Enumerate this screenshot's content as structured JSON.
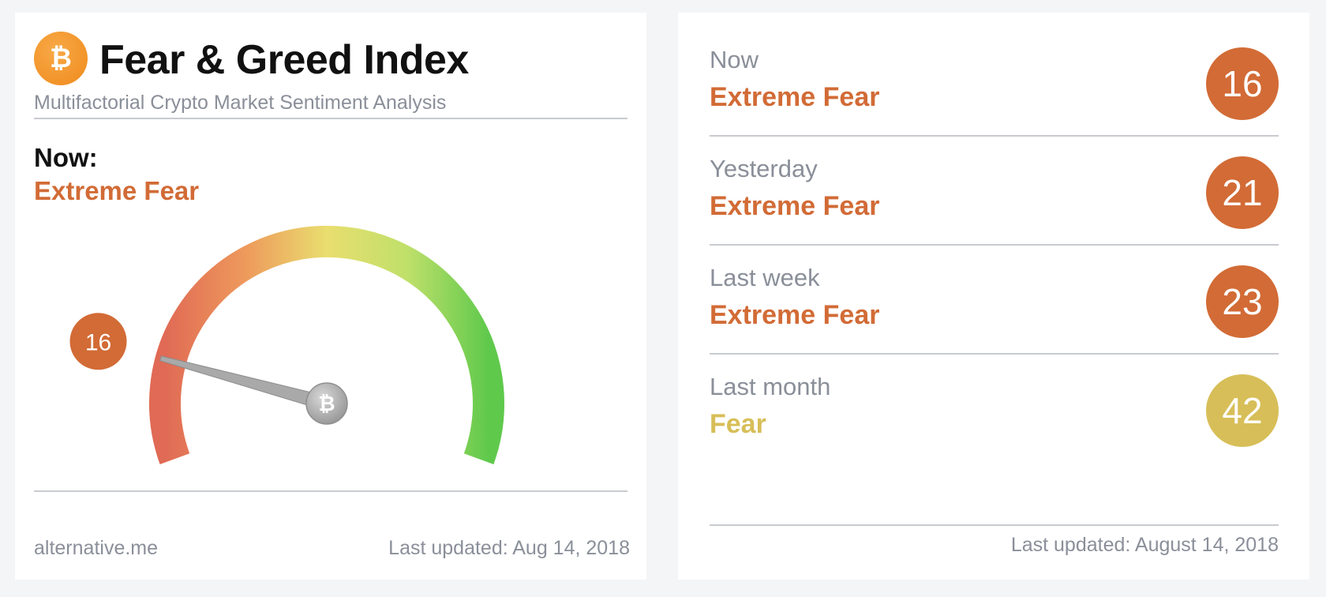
{
  "brand": {
    "icon": "bitcoin-icon",
    "icon_glyph": "₿"
  },
  "header": {
    "title": "Fear & Greed Index",
    "subtitle": "Multifactorial Crypto Market Sentiment Analysis"
  },
  "now": {
    "label": "Now:",
    "classification": "Extreme Fear",
    "value": 16,
    "value_label": "16",
    "color": "#d26b36"
  },
  "gauge": {
    "min": 0,
    "max": 100,
    "value": 16,
    "needle_hub_icon": "bitcoin-icon",
    "colors": {
      "low": "#e06a55",
      "mid": "#e9de6f",
      "high": "#5fc94c"
    }
  },
  "footer": {
    "site": "alternative.me",
    "updated": "Last updated: Aug 14, 2018"
  },
  "history": [
    {
      "label": "Now",
      "classification": "Extreme Fear",
      "value": "16",
      "color": "#d26b36"
    },
    {
      "label": "Yesterday",
      "classification": "Extreme Fear",
      "value": "21",
      "color": "#d26b36"
    },
    {
      "label": "Last week",
      "classification": "Extreme Fear",
      "value": "23",
      "color": "#d26b36"
    },
    {
      "label": "Last month",
      "classification": "Fear",
      "value": "42",
      "color": "#d7be58"
    }
  ],
  "history_updated": "Last updated: August 14, 2018"
}
